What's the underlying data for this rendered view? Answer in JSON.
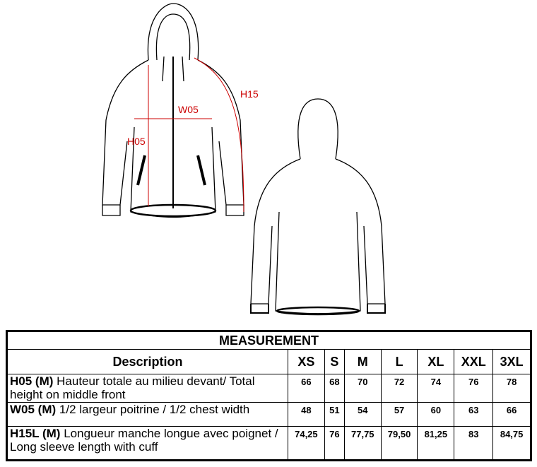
{
  "labels": {
    "h05": "H05",
    "w05": "W05",
    "h15": "H15"
  },
  "colors": {
    "dimension": "#cc0000",
    "outline": "#000000"
  },
  "table": {
    "title": "MEASUREMENT",
    "desc_header": "Description",
    "sizes": [
      "XS",
      "S",
      "M",
      "L",
      "XL",
      "XXL",
      "3XL"
    ],
    "rows": [
      {
        "code": "H05 (M)",
        "text": "Hauteur totale au milieu devant/ Total height on middle front",
        "values": [
          "66",
          "68",
          "70",
          "72",
          "74",
          "76",
          "78"
        ]
      },
      {
        "code": "W05 (M)",
        "text": "1/2 largeur poitrine / 1/2 chest width",
        "values": [
          "48",
          "51",
          "54",
          "57",
          "60",
          "63",
          "66"
        ]
      },
      {
        "code": "H15L (M)",
        "text": "Longueur manche longue avec poignet / Long sleeve length with cuff",
        "values": [
          "74,25",
          "76",
          "77,75",
          "79,50",
          "81,25",
          "83",
          "84,75"
        ]
      }
    ]
  }
}
